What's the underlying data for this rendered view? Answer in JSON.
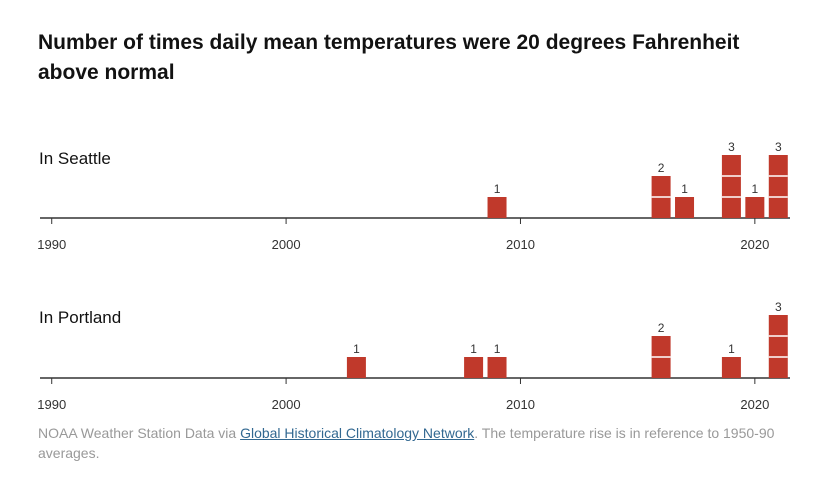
{
  "title": "Number of times daily mean temperatures were 20 degrees Fahrenheit above normal",
  "colors": {
    "bar": "#c0392b",
    "axis": "#333333",
    "note": "#999999",
    "link": "#326891"
  },
  "chart_data": [
    {
      "type": "bar",
      "title": "In Seattle",
      "x_ticks": [
        1990,
        2000,
        2010,
        2020
      ],
      "xlim": [
        1989.5,
        2021.5
      ],
      "ylim": [
        0,
        3
      ],
      "grid": false,
      "points": [
        {
          "year": 2009,
          "value": 1
        },
        {
          "year": 2016,
          "value": 2
        },
        {
          "year": 2017,
          "value": 1
        },
        {
          "year": 2019,
          "value": 3
        },
        {
          "year": 2020,
          "value": 1
        },
        {
          "year": 2021,
          "value": 3
        }
      ]
    },
    {
      "type": "bar",
      "title": "In Portland",
      "x_ticks": [
        1990,
        2000,
        2010,
        2020
      ],
      "xlim": [
        1989.5,
        2021.5
      ],
      "ylim": [
        0,
        3
      ],
      "grid": false,
      "points": [
        {
          "year": 2003,
          "value": 1
        },
        {
          "year": 2008,
          "value": 1
        },
        {
          "year": 2009,
          "value": 1
        },
        {
          "year": 2016,
          "value": 2
        },
        {
          "year": 2019,
          "value": 1
        },
        {
          "year": 2021,
          "value": 3
        }
      ]
    }
  ],
  "source": {
    "prefix": "NOAA Weather Station Data via ",
    "link_text": "Global Historical Climatology Network",
    "suffix": ". The temperature rise is in reference to 1950-90 averages."
  }
}
